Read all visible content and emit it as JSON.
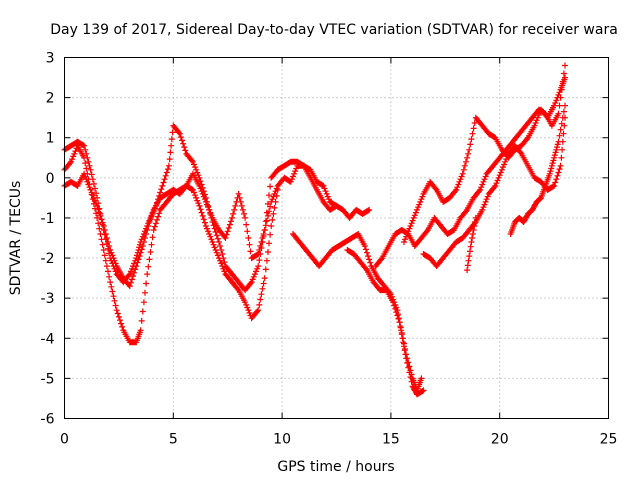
{
  "chart_data": {
    "type": "scatter",
    "title": "Day 139 of 2017, Sidereal Day-to-day VTEC variation (SDTVAR) for receiver wara",
    "xlabel": "GPS time / hours",
    "ylabel": "SDTVAR / TECUs",
    "xlim": [
      0,
      25
    ],
    "ylim": [
      -6,
      3
    ],
    "x_ticks": [
      0,
      5,
      10,
      15,
      20,
      25
    ],
    "y_ticks": [
      -6,
      -5,
      -4,
      -3,
      -2,
      -1,
      0,
      1,
      2,
      3
    ],
    "grid": true,
    "marker": "plus",
    "color": "#ff0000",
    "series": [
      {
        "x": [
          0.0,
          0.3,
          0.6,
          0.9,
          1.2,
          1.5,
          1.8,
          2.1,
          2.4,
          2.7,
          3.0,
          3.3,
          3.5,
          3.8,
          4.1,
          4.4,
          4.7,
          5.0,
          5.3,
          5.6,
          5.9,
          6.2,
          6.5,
          6.8,
          7.1,
          7.4,
          7.7,
          8.0,
          8.3,
          8.6,
          8.9,
          9.2,
          9.5,
          9.8,
          10.1,
          10.4,
          10.7,
          11.0,
          11.3,
          11.6,
          11.9,
          12.2,
          12.5,
          12.8,
          13.1,
          13.4,
          13.7,
          14.0
        ],
        "y": [
          0.7,
          0.8,
          0.9,
          0.8,
          0.2,
          -0.5,
          -1.3,
          -2.0,
          -2.4,
          -2.6,
          -2.4,
          -2.0,
          -1.6,
          -1.2,
          -0.8,
          -0.5,
          -0.4,
          -0.3,
          -0.4,
          -0.2,
          0.1,
          -0.2,
          -0.6,
          -1.0,
          -1.3,
          -1.5,
          -1.0,
          -0.4,
          -1.0,
          -2.0,
          -1.9,
          -1.3,
          -0.6,
          -0.2,
          0.0,
          -0.1,
          0.3,
          0.3,
          0.0,
          -0.3,
          -0.6,
          -0.8,
          -0.7,
          -0.8,
          -1.0,
          -0.8,
          -0.9,
          -0.8
        ]
      },
      {
        "x": [
          0.0,
          0.3,
          0.6,
          0.9,
          1.2,
          1.5,
          1.8,
          2.1,
          2.4,
          2.7,
          3.0,
          3.3,
          3.6,
          3.9,
          4.2,
          4.5,
          4.8,
          5.0,
          5.3,
          5.6,
          5.9,
          6.2,
          6.5,
          6.8,
          7.1,
          7.4,
          7.7,
          8.0,
          8.3,
          8.6,
          8.9,
          9.2,
          9.5,
          9.8,
          10.1,
          10.4,
          10.7,
          11.0,
          11.3,
          11.6,
          11.9,
          12.2,
          12.5
        ],
        "y": [
          -0.2,
          -0.1,
          -0.2,
          0.1,
          -0.3,
          -0.7,
          -1.2,
          -1.8,
          -2.2,
          -2.5,
          -2.7,
          -2.2,
          -1.7,
          -1.1,
          -0.7,
          -0.2,
          0.3,
          1.3,
          1.1,
          0.6,
          0.4,
          0.0,
          -0.5,
          -1.1,
          -1.6,
          -2.2,
          -2.4,
          -2.6,
          -2.8,
          -2.6,
          -2.2,
          -1.3,
          0.0,
          0.2,
          0.3,
          0.4,
          0.4,
          0.3,
          0.2,
          -0.1,
          -0.2,
          -0.6,
          -0.7
        ]
      },
      {
        "x": [
          0.0,
          0.3,
          0.6,
          0.9,
          1.2,
          1.5,
          1.8,
          2.1,
          2.4,
          2.7,
          3.0,
          3.3,
          3.5,
          3.8,
          4.1,
          4.4,
          4.7,
          5.0,
          5.3,
          5.6,
          5.9,
          6.2,
          6.5,
          6.8,
          7.1,
          7.4,
          7.7,
          8.0,
          8.3,
          8.6,
          8.9,
          9.2,
          9.5,
          9.8
        ],
        "y": [
          0.2,
          0.4,
          0.8,
          0.5,
          -0.3,
          -1.0,
          -1.8,
          -2.6,
          -3.3,
          -3.8,
          -4.1,
          -4.1,
          -3.8,
          -2.4,
          -1.3,
          -0.8,
          -0.6,
          -0.4,
          -0.3,
          -0.2,
          -0.3,
          -0.7,
          -1.2,
          -1.6,
          -2.0,
          -2.4,
          -2.6,
          -2.8,
          -3.1,
          -3.5,
          -3.3,
          -2.5,
          -1.2,
          -0.3
        ]
      },
      {
        "x": [
          10.5,
          10.8,
          11.1,
          11.4,
          11.7,
          12.0,
          12.3,
          12.6,
          12.9,
          13.2,
          13.5,
          13.8,
          14.1,
          14.4,
          14.7,
          15.0,
          15.3,
          15.5,
          15.7,
          16.0,
          16.2,
          16.5
        ],
        "y": [
          -1.4,
          -1.6,
          -1.8,
          -2.0,
          -2.2,
          -2.0,
          -1.8,
          -1.7,
          -1.6,
          -1.5,
          -1.4,
          -1.7,
          -2.2,
          -2.5,
          -2.7,
          -2.9,
          -3.3,
          -3.9,
          -4.5,
          -5.2,
          -5.4,
          -5.3
        ]
      },
      {
        "x": [
          13.0,
          13.3,
          13.6,
          13.9,
          14.2,
          14.5,
          14.8,
          15.1,
          15.4,
          15.7,
          16.0,
          16.2,
          16.4
        ],
        "y": [
          -1.8,
          -1.9,
          -2.1,
          -2.3,
          -2.6,
          -2.8,
          -2.8,
          -3.1,
          -3.6,
          -4.4,
          -5.0,
          -5.3,
          -5.0
        ]
      },
      {
        "x": [
          14.3,
          14.6,
          14.9,
          15.2,
          15.5,
          15.8,
          16.1,
          16.4,
          16.7,
          17.0,
          17.3,
          17.6,
          17.9,
          18.2,
          18.5,
          18.8,
          19.1,
          19.4,
          19.7,
          20.0,
          20.3,
          20.6,
          20.9,
          21.2,
          21.5,
          21.8,
          22.1,
          22.4,
          22.7,
          23.0
        ],
        "y": [
          -2.2,
          -2.0,
          -1.7,
          -1.4,
          -1.3,
          -1.4,
          -1.7,
          -1.5,
          -1.3,
          -1.0,
          -1.2,
          -1.4,
          -1.3,
          -1.0,
          -0.8,
          -0.5,
          -0.3,
          0.1,
          0.3,
          0.5,
          0.7,
          0.9,
          1.1,
          1.3,
          1.5,
          1.7,
          1.6,
          1.3,
          1.6,
          2.8
        ]
      },
      {
        "x": [
          15.6,
          15.9,
          16.2,
          16.5,
          16.8,
          17.1,
          17.4,
          17.7,
          18.0,
          18.3,
          18.6,
          18.9,
          19.2,
          19.5,
          19.8,
          20.1,
          20.4,
          20.7,
          21.0,
          21.3,
          21.6,
          21.9,
          22.2,
          22.5,
          22.8,
          23.0
        ],
        "y": [
          -1.6,
          -1.2,
          -0.8,
          -0.4,
          -0.1,
          -0.3,
          -0.6,
          -0.5,
          -0.3,
          0.1,
          0.7,
          1.5,
          1.3,
          1.1,
          1.0,
          0.7,
          0.5,
          0.7,
          0.8,
          1.0,
          1.3,
          1.7,
          1.5,
          1.8,
          2.2,
          2.5
        ]
      },
      {
        "x": [
          16.5,
          16.8,
          17.1,
          17.4,
          17.7,
          18.0,
          18.3,
          18.6,
          18.9,
          19.2,
          19.5,
          19.8,
          20.1,
          20.4,
          20.7,
          21.0,
          21.3,
          21.6,
          21.9,
          22.2,
          22.5,
          22.8,
          23.0
        ],
        "y": [
          -1.9,
          -2.0,
          -2.2,
          -2.0,
          -1.8,
          -1.6,
          -1.5,
          -1.3,
          -1.1,
          -0.8,
          -0.4,
          -0.2,
          0.2,
          0.6,
          0.8,
          0.6,
          0.3,
          0.0,
          -0.1,
          -0.3,
          -0.2,
          0.3,
          1.5
        ]
      },
      {
        "x": [
          20.5,
          20.7,
          20.9,
          21.1,
          21.3,
          21.5,
          21.7,
          21.9,
          22.1,
          22.3,
          22.5,
          22.7,
          23.0
        ],
        "y": [
          -1.4,
          -1.1,
          -1.0,
          -1.1,
          -0.9,
          -0.8,
          -0.6,
          -0.5,
          -0.2,
          0.1,
          0.5,
          0.9,
          1.8
        ]
      },
      {
        "x": [
          18.5,
          18.7,
          18.9
        ],
        "y": [
          -2.3,
          -1.6,
          -1.0
        ]
      }
    ]
  }
}
